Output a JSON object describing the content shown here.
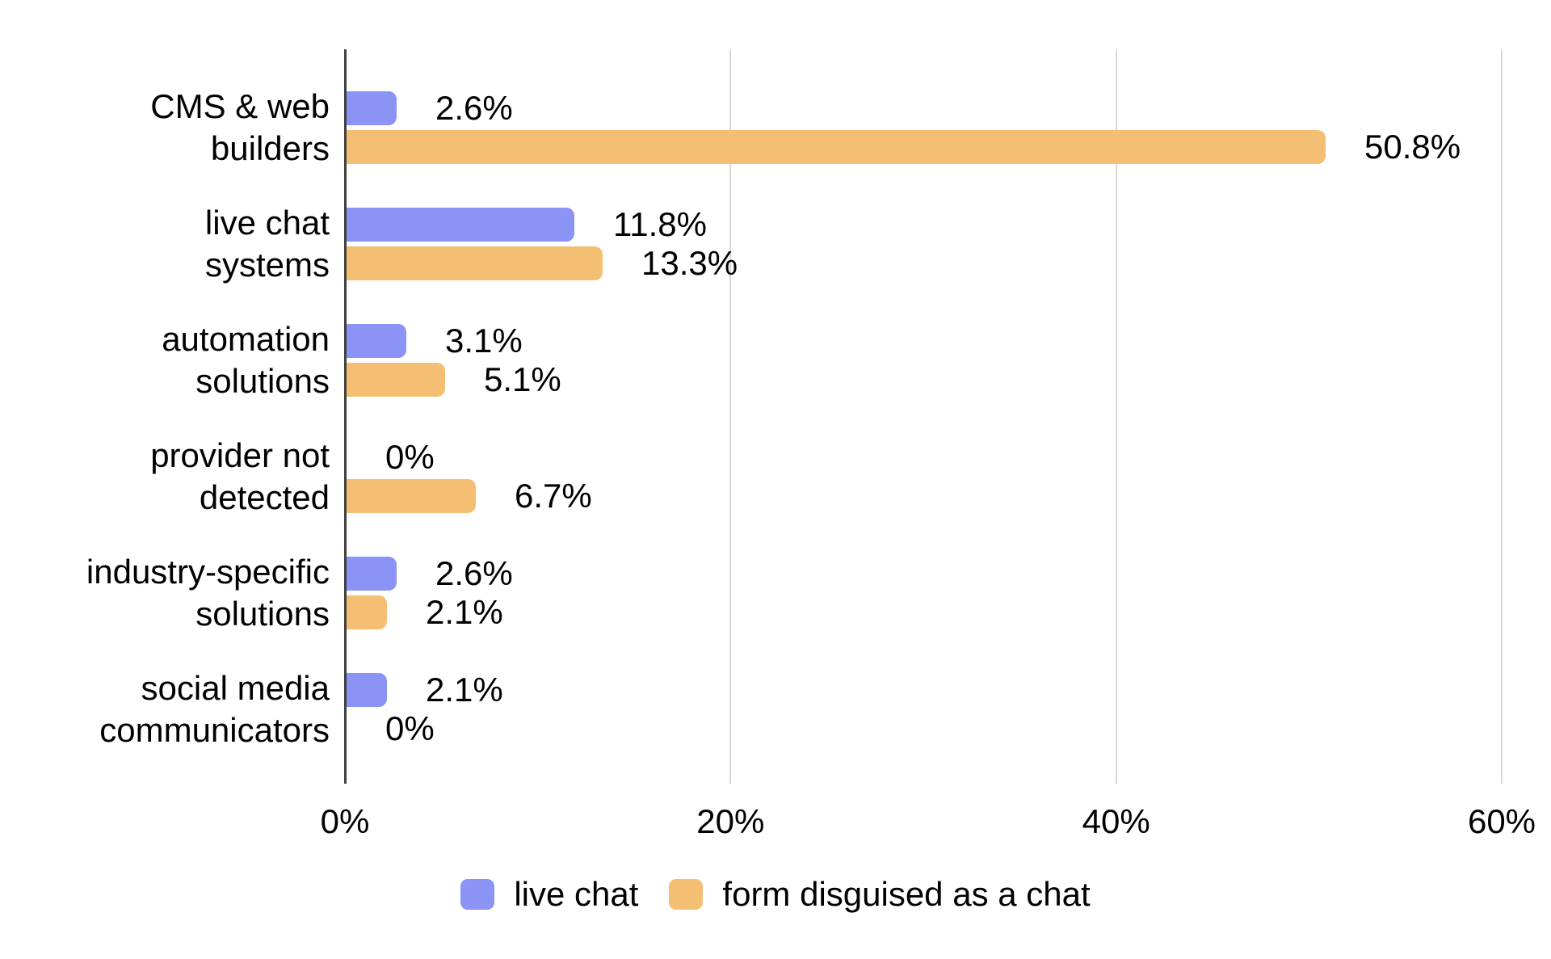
{
  "chart_data": {
    "type": "bar",
    "orientation": "horizontal",
    "title": "",
    "categories": [
      "CMS & web builders",
      "live chat systems",
      "automation solutions",
      "provider not detected",
      "industry-specific solutions",
      "social media communicators"
    ],
    "category_label_lines": [
      [
        "CMS & web",
        "builders"
      ],
      [
        "live chat",
        "systems"
      ],
      [
        "automation",
        "solutions"
      ],
      [
        "provider not",
        "detected"
      ],
      [
        "industry-specific",
        "solutions"
      ],
      [
        "social media",
        "communicators"
      ]
    ],
    "series": [
      {
        "name": "live chat",
        "color": "#8b93f4",
        "values": [
          2.6,
          11.8,
          3.1,
          0,
          2.6,
          2.1
        ],
        "value_labels": [
          "2.6%",
          "11.8%",
          "3.1%",
          "0%",
          "2.6%",
          "2.1%"
        ]
      },
      {
        "name": "form disguised as a chat",
        "color": "#f4bf72",
        "values": [
          50.8,
          13.3,
          5.1,
          6.7,
          2.1,
          0
        ],
        "value_labels": [
          "50.8%",
          "13.3%",
          "5.1%",
          "6.7%",
          "2.1%",
          "0%"
        ]
      }
    ],
    "x_axis": {
      "tick_labels": [
        "0%",
        "20%",
        "40%",
        "60%"
      ],
      "tick_values": [
        0,
        20,
        40,
        60
      ],
      "min": 0,
      "max": 60
    },
    "grid": true,
    "legend_position": "bottom"
  },
  "colors": {
    "background": "#ffffff",
    "axis_line": "#3f3f3f",
    "grid_line": "#d9d9d9",
    "text": "#000000"
  }
}
